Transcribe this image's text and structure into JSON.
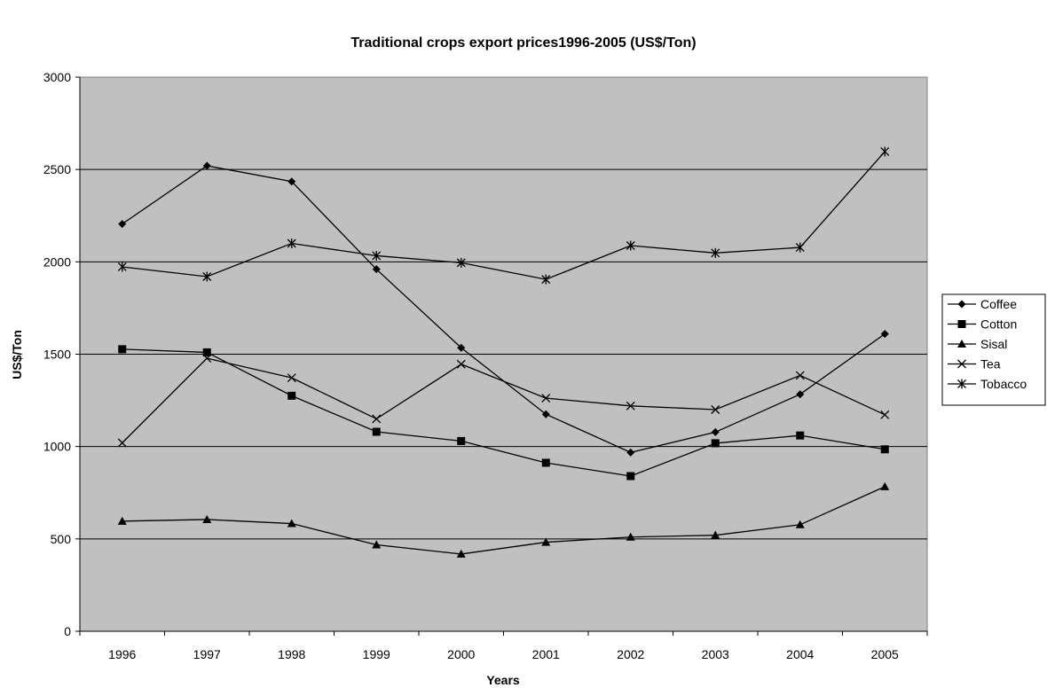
{
  "chart_data": {
    "type": "line",
    "title": "Traditional crops export prices1996-2005 (US$/Ton)",
    "xlabel": "Years",
    "ylabel": "US$/Ton",
    "ylim": [
      0,
      3000
    ],
    "yticks": [
      0,
      500,
      1000,
      1500,
      2000,
      2500,
      3000
    ],
    "categories": [
      "1996",
      "1997",
      "1998",
      "1999",
      "2000",
      "2001",
      "2002",
      "2003",
      "2004",
      "2005"
    ],
    "grid": true,
    "legend_position": "right",
    "plot_background": "#c0c0c0",
    "line_color": "#000000",
    "series": [
      {
        "name": "Coffee",
        "marker": "diamond",
        "values": [
          2205,
          2520,
          2435,
          1960,
          1535,
          1175,
          968,
          1078,
          1283,
          1610
        ]
      },
      {
        "name": "Cotton",
        "marker": "square",
        "values": [
          1527,
          1510,
          1275,
          1080,
          1030,
          912,
          840,
          1018,
          1060,
          985
        ]
      },
      {
        "name": "Sisal",
        "marker": "triangle",
        "values": [
          596,
          605,
          583,
          468,
          418,
          482,
          510,
          520,
          577,
          783
        ]
      },
      {
        "name": "Tea",
        "marker": "x",
        "values": [
          1020,
          1478,
          1372,
          1150,
          1446,
          1262,
          1220,
          1200,
          1385,
          1172
        ]
      },
      {
        "name": "Tobacco",
        "marker": "star",
        "values": [
          1973,
          1920,
          2100,
          2033,
          1995,
          1905,
          2088,
          2048,
          2078,
          2597
        ]
      }
    ]
  }
}
